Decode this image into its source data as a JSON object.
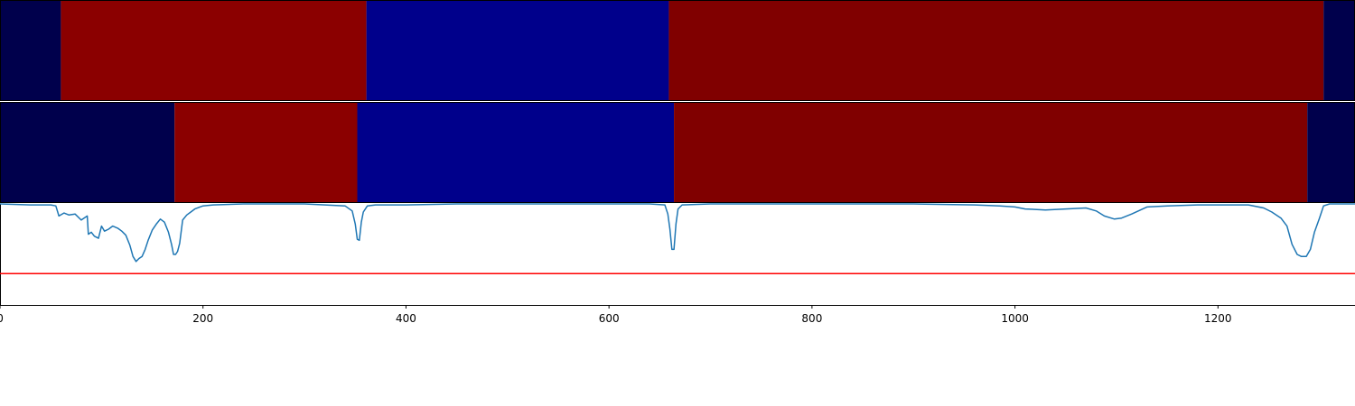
{
  "chart_data": {
    "type": "segmentation-timeline",
    "xlim": [
      0,
      1335
    ],
    "x_ticks": [
      0,
      200,
      400,
      600,
      800,
      1000,
      1200
    ],
    "tick_labels": [
      "0",
      "200",
      "400",
      "600",
      "800",
      "1000",
      "1200"
    ],
    "segment_rows": [
      {
        "segments": [
          {
            "start": 0,
            "end": 60,
            "color": "#00004c"
          },
          {
            "start": 60,
            "end": 361,
            "color": "#8b0000"
          },
          {
            "start": 361,
            "end": 659,
            "color": "#00008b"
          },
          {
            "start": 659,
            "end": 1304,
            "color": "#800000"
          },
          {
            "start": 1304,
            "end": 1335,
            "color": "#00004c"
          }
        ]
      },
      {
        "segments": [
          {
            "start": 0,
            "end": 172,
            "color": "#00004c"
          },
          {
            "start": 172,
            "end": 352,
            "color": "#8b0000"
          },
          {
            "start": 352,
            "end": 664,
            "color": "#00008b"
          },
          {
            "start": 664,
            "end": 1288,
            "color": "#800000"
          },
          {
            "start": 1288,
            "end": 1335,
            "color": "#00004c"
          }
        ]
      }
    ],
    "signal_panel": {
      "ylim": [
        0,
        1
      ],
      "threshold": 0.31,
      "threshold_color": "#ff0000",
      "line_color": "#1f77b4",
      "points": [
        [
          0,
          1.0
        ],
        [
          30,
          0.99
        ],
        [
          50,
          0.99
        ],
        [
          55,
          0.98
        ],
        [
          58,
          0.88
        ],
        [
          63,
          0.91
        ],
        [
          68,
          0.89
        ],
        [
          74,
          0.9
        ],
        [
          80,
          0.84
        ],
        [
          86,
          0.88
        ],
        [
          87,
          0.7
        ],
        [
          90,
          0.72
        ],
        [
          93,
          0.68
        ],
        [
          97,
          0.66
        ],
        [
          100,
          0.78
        ],
        [
          103,
          0.73
        ],
        [
          107,
          0.75
        ],
        [
          111,
          0.78
        ],
        [
          116,
          0.76
        ],
        [
          120,
          0.73
        ],
        [
          124,
          0.69
        ],
        [
          128,
          0.59
        ],
        [
          131,
          0.48
        ],
        [
          134,
          0.43
        ],
        [
          137,
          0.46
        ],
        [
          140,
          0.48
        ],
        [
          143,
          0.55
        ],
        [
          146,
          0.64
        ],
        [
          150,
          0.74
        ],
        [
          154,
          0.8
        ],
        [
          158,
          0.85
        ],
        [
          162,
          0.82
        ],
        [
          166,
          0.72
        ],
        [
          169,
          0.6
        ],
        [
          171,
          0.5
        ],
        [
          173,
          0.5
        ],
        [
          175,
          0.53
        ],
        [
          177,
          0.61
        ],
        [
          180,
          0.84
        ],
        [
          184,
          0.89
        ],
        [
          188,
          0.92
        ],
        [
          192,
          0.95
        ],
        [
          200,
          0.98
        ],
        [
          210,
          0.99
        ],
        [
          240,
          1.0
        ],
        [
          300,
          1.0
        ],
        [
          320,
          0.99
        ],
        [
          340,
          0.98
        ],
        [
          347,
          0.93
        ],
        [
          350,
          0.8
        ],
        [
          352,
          0.65
        ],
        [
          354,
          0.64
        ],
        [
          356,
          0.82
        ],
        [
          358,
          0.92
        ],
        [
          362,
          0.98
        ],
        [
          370,
          0.99
        ],
        [
          400,
          0.99
        ],
        [
          450,
          1.0
        ],
        [
          550,
          1.0
        ],
        [
          600,
          1.0
        ],
        [
          640,
          1.0
        ],
        [
          655,
          0.99
        ],
        [
          658,
          0.9
        ],
        [
          660,
          0.75
        ],
        [
          662,
          0.55
        ],
        [
          664,
          0.55
        ],
        [
          666,
          0.8
        ],
        [
          668,
          0.95
        ],
        [
          672,
          0.99
        ],
        [
          700,
          1.0
        ],
        [
          800,
          1.0
        ],
        [
          900,
          1.0
        ],
        [
          960,
          0.99
        ],
        [
          985,
          0.98
        ],
        [
          1000,
          0.97
        ],
        [
          1010,
          0.95
        ],
        [
          1030,
          0.94
        ],
        [
          1050,
          0.95
        ],
        [
          1070,
          0.96
        ],
        [
          1080,
          0.93
        ],
        [
          1088,
          0.88
        ],
        [
          1098,
          0.85
        ],
        [
          1105,
          0.86
        ],
        [
          1115,
          0.9
        ],
        [
          1130,
          0.97
        ],
        [
          1150,
          0.98
        ],
        [
          1180,
          0.99
        ],
        [
          1230,
          0.99
        ],
        [
          1245,
          0.96
        ],
        [
          1253,
          0.92
        ],
        [
          1262,
          0.86
        ],
        [
          1268,
          0.78
        ],
        [
          1273,
          0.6
        ],
        [
          1278,
          0.5
        ],
        [
          1282,
          0.48
        ],
        [
          1287,
          0.48
        ],
        [
          1291,
          0.55
        ],
        [
          1295,
          0.72
        ],
        [
          1300,
          0.86
        ],
        [
          1304,
          0.98
        ],
        [
          1310,
          1.0
        ],
        [
          1335,
          1.0
        ]
      ]
    }
  }
}
